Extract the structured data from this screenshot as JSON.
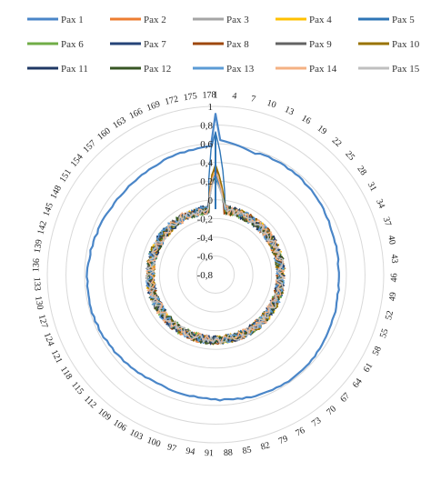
{
  "chart_data": {
    "type": "radar",
    "rlim": [
      -0.8,
      1.0
    ],
    "rticks": [
      "1",
      "0,8",
      "0,6",
      "0,4",
      "0,2",
      "0",
      "-0,2",
      "-0,4",
      "-0,6",
      "-0,8"
    ],
    "n_categories": 178,
    "category_label_step": 3,
    "visible_category_labels": [
      "1",
      "4",
      "7",
      "10",
      "13",
      "151",
      "154",
      "148"
    ],
    "grid": true,
    "legend_position": "top",
    "series": [
      {
        "name": "Pax 1",
        "color": "#4a86c8",
        "base": 0.55,
        "amp": 0.03,
        "peak": 0.92,
        "spread": 0.01
      },
      {
        "name": "Pax 2",
        "color": "#ed7d31",
        "base": -0.1,
        "amp": 0.05,
        "peak": 0.3,
        "spread": 0.08
      },
      {
        "name": "Pax 3",
        "color": "#a5a5a5",
        "base": -0.1,
        "amp": 0.04,
        "peak": 0.25,
        "spread": 0.08
      },
      {
        "name": "Pax 4",
        "color": "#ffc000",
        "base": -0.1,
        "amp": 0.05,
        "peak": 0.32,
        "spread": 0.08
      },
      {
        "name": "Pax 5",
        "color": "#2e75b6",
        "base": -0.1,
        "amp": 0.05,
        "peak": 0.7,
        "spread": 0.08
      },
      {
        "name": "Pax 6",
        "color": "#70ad47",
        "base": -0.1,
        "amp": 0.05,
        "peak": 0.28,
        "spread": 0.08
      },
      {
        "name": "Pax 7",
        "color": "#264478",
        "base": -0.1,
        "amp": 0.05,
        "peak": 0.3,
        "spread": 0.08
      },
      {
        "name": "Pax 8",
        "color": "#9e480e",
        "base": -0.1,
        "amp": 0.05,
        "peak": 0.35,
        "spread": 0.08
      },
      {
        "name": "Pax 9",
        "color": "#636363",
        "base": -0.1,
        "amp": 0.05,
        "peak": 0.3,
        "spread": 0.08
      },
      {
        "name": "Pax 10",
        "color": "#997300",
        "base": -0.1,
        "amp": 0.05,
        "peak": 0.38,
        "spread": 0.08
      },
      {
        "name": "Pax 11",
        "color": "#1f3864",
        "base": -0.1,
        "amp": 0.05,
        "peak": 0.28,
        "spread": 0.08
      },
      {
        "name": "Pax 12",
        "color": "#375623",
        "base": -0.1,
        "amp": 0.05,
        "peak": 0.26,
        "spread": 0.08
      },
      {
        "name": "Pax 13",
        "color": "#5b9bd5",
        "base": -0.1,
        "amp": 0.05,
        "peak": 0.28,
        "spread": 0.08
      },
      {
        "name": "Pax 14",
        "color": "#f4b183",
        "base": -0.1,
        "amp": 0.05,
        "peak": 0.3,
        "spread": 0.08
      },
      {
        "name": "Pax 15",
        "color": "#bfbfbf",
        "base": -0.1,
        "amp": 0.04,
        "peak": 0.22,
        "spread": 0.08
      }
    ]
  }
}
